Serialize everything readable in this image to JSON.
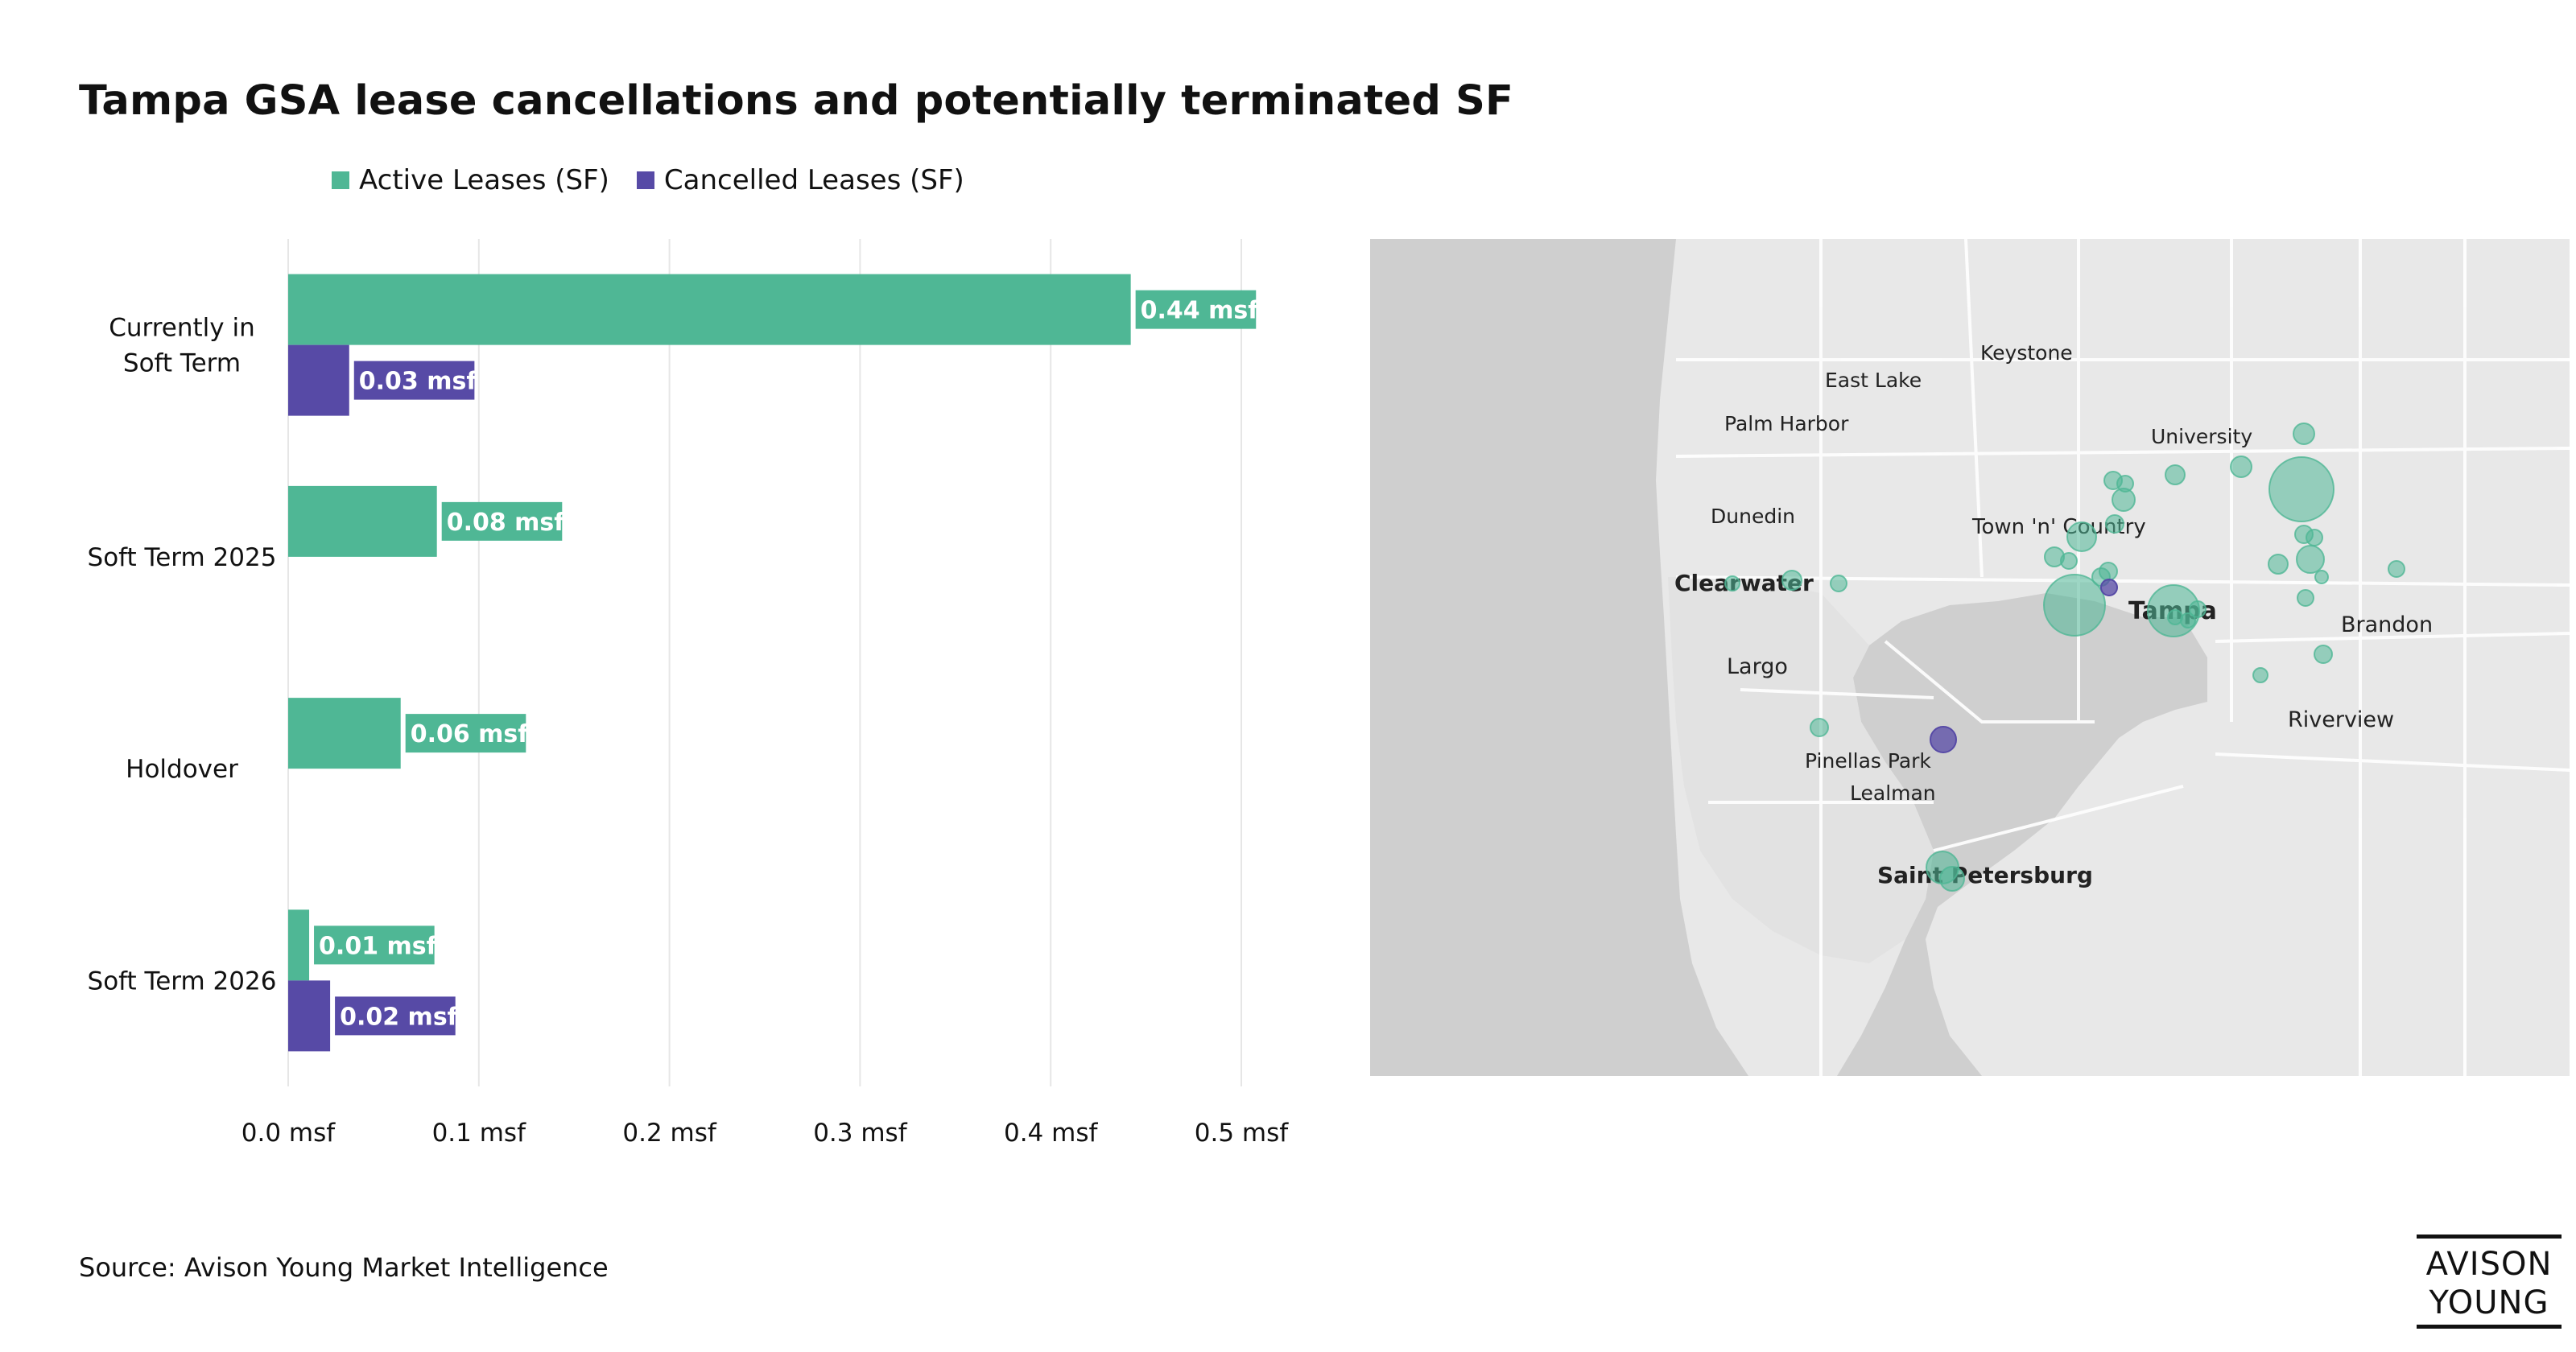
{
  "title": "Tampa GSA lease cancellations and potentially terminated SF",
  "legend": {
    "active": "Active Leases (SF)",
    "cancelled": "Cancelled Leases (SF)"
  },
  "colors": {
    "active": "#4fb795",
    "cancelled": "#574aa6",
    "map_water": "#cfcfcf",
    "map_land": "#e7e7e7"
  },
  "chart_data": {
    "type": "bar",
    "orientation": "horizontal",
    "title": "Tampa GSA lease cancellations and potentially terminated SF",
    "categories": [
      [
        "Currently in",
        "Soft Term"
      ],
      [
        "Soft Term 2025"
      ],
      [
        "Holdover"
      ],
      [
        "Soft Term 2026"
      ]
    ],
    "series": [
      {
        "name": "Active Leases (SF)",
        "values": [
          0.442,
          0.078,
          0.059,
          0.011
        ],
        "labels": [
          "0.44 msf",
          "0.08 msf",
          "0.06 msf",
          "0.01 msf"
        ]
      },
      {
        "name": "Cancelled Leases (SF)",
        "values": [
          0.032,
          null,
          null,
          0.022
        ],
        "labels": [
          "0.03 msf",
          "",
          "",
          "0.02 msf"
        ]
      }
    ],
    "xlim": [
      0,
      0.5
    ],
    "xticks": [
      0,
      0.1,
      0.2,
      0.3,
      0.4,
      0.5
    ],
    "xtick_labels": [
      "0.0 msf",
      "0.1 msf",
      "0.2 msf",
      "0.3 msf",
      "0.4 msf",
      "0.5 msf"
    ],
    "xlabel": "",
    "ylabel": "",
    "grid": "vertical",
    "legend_position": "top"
  },
  "map": {
    "place_labels": [
      "Keystone",
      "East Lake",
      "Palm Harbor",
      "University",
      "Dunedin",
      "Town 'n' Country",
      "Clearwater",
      "Tampa",
      "Brandon",
      "Largo",
      "Riverview",
      "Pinellas Park",
      "Lealman",
      "Saint Petersburg"
    ],
    "markers_active_count": 33,
    "markers_cancelled_count": 2
  },
  "source": "Source: Avison Young Market Intelligence",
  "logo": {
    "line1": "AVISON",
    "line2": "YOUNG"
  }
}
